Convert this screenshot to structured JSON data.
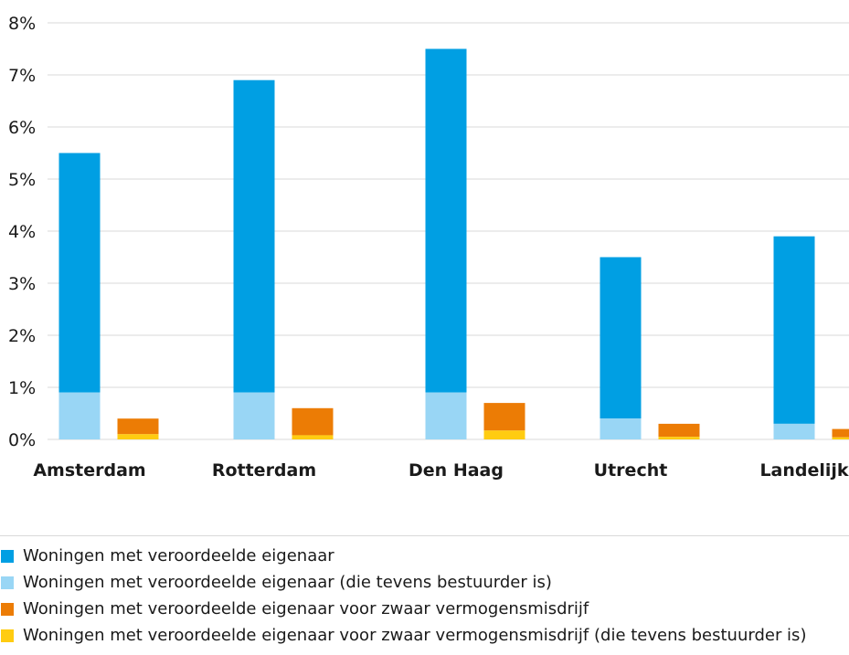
{
  "chart_data": {
    "type": "bar",
    "title": "",
    "xlabel": "",
    "ylabel": "",
    "ylim": [
      0,
      8
    ],
    "y_tick_values": [
      0,
      1,
      2,
      3,
      4,
      5,
      6,
      7,
      8
    ],
    "y_tick_labels": [
      "0%",
      "1%",
      "2%",
      "3%",
      "4%",
      "5%",
      "6%",
      "7%",
      "8%"
    ],
    "y_unit": "%",
    "grid": true,
    "legend_position": "bottom",
    "categories": [
      "Amsterdam",
      "Rotterdam",
      "Den Haag",
      "Utrecht",
      "Landelijk"
    ],
    "series": [
      {
        "name": "Woningen met veroordeelde eigenaar",
        "color": "#009fe3",
        "stack": "all",
        "values": [
          5.5,
          6.9,
          7.5,
          3.5,
          3.9
        ]
      },
      {
        "name": "Woningen met veroordeelde eigenaar (die tevens bestuurder is)",
        "color": "#99d6f5",
        "stack": "all",
        "values": [
          0.9,
          0.9,
          0.9,
          0.4,
          0.3
        ]
      },
      {
        "name": "Woningen met veroordeelde eigenaar voor zwaar vermogensmisdrijf",
        "color": "#ec7c05",
        "stack": "severe",
        "values": [
          0.4,
          0.6,
          0.7,
          0.3,
          0.2
        ]
      },
      {
        "name": "Woningen met veroordeelde eigenaar voor zwaar vermogensmisdrijf (die tevens bestuurder is)",
        "color": "#ffcc11",
        "stack": "severe",
        "values": [
          0.1,
          0.08,
          0.17,
          0.05,
          0.04
        ]
      }
    ]
  },
  "legend": {
    "items": [
      {
        "label": "Woningen met veroordeelde eigenaar",
        "color": "#009fe3"
      },
      {
        "label": "Woningen met veroordeelde eigenaar (die tevens bestuurder is)",
        "color": "#99d6f5"
      },
      {
        "label": "Woningen met veroordeelde eigenaar voor zwaar vermogensmisdrijf",
        "color": "#ec7c05"
      },
      {
        "label": "Woningen met veroordeelde eigenaar voor zwaar vermogensmisdrijf (die tevens bestuurder is)",
        "color": "#ffcc11"
      }
    ]
  }
}
